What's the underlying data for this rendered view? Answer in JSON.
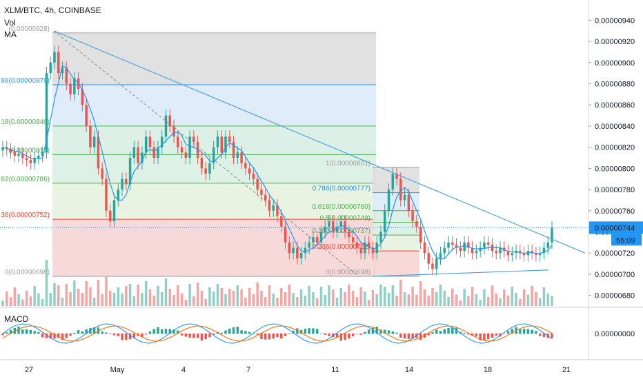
{
  "header": {
    "symbol": "XLM/BTC, 4h, COINBASE",
    "vol_label": "Vol",
    "vol_value": "(0.00000928)",
    "ma_label": "MA",
    "macd_label": "MACD"
  },
  "colors": {
    "up": "#26a69a",
    "down": "#ef5350",
    "vol_up": "#8fcfc6",
    "vol_down": "#f3a5a3",
    "ma": "#2196f3",
    "trend": "#4aa3df",
    "macd_line": "#2196f3",
    "signal_line": "#ff6d00",
    "price_tag_bg": "#2196f3"
  },
  "chart_data": {
    "type": "candlestick",
    "title": "XLM/BTC, 4h, COINBASE",
    "ylim": [
      6.7e-06,
      9.5e-06
    ],
    "price_ticks": [
      "0.00000940",
      "0.00000920",
      "0.00000900",
      "0.00000880",
      "0.00000860",
      "0.00000840",
      "0.00000820",
      "0.00000800",
      "0.00000780",
      "0.00000760",
      "0.00000740",
      "0.00000720",
      "0.00000700",
      "0.00000680"
    ],
    "macd_tick": "0.00000000",
    "time_ticks": [
      "27",
      "May",
      "4",
      "7",
      "11",
      "14",
      "18",
      "21"
    ],
    "last_price": "0.00000744",
    "countdown": "55:09",
    "fib_big": [
      {
        "level": "1",
        "price": 9.28e-06,
        "label": "(0.00000928)",
        "color": "#9e9e9e"
      },
      {
        "level": "0.786",
        "price": 8.79e-06,
        "label": "86(0.00000879)",
        "color": "#2196f3"
      },
      {
        "level": "0.618",
        "price": 8.4e-06,
        "label": "18(0.00000840)",
        "color": "#4caf50"
      },
      {
        "level": "0.5",
        "price": 8.13e-06,
        "label": "(0.00000813)",
        "color": "#4caf50"
      },
      {
        "level": "0.382",
        "price": 7.86e-06,
        "label": "82(0.00000786)",
        "color": "#4caf50"
      },
      {
        "level": "0.236",
        "price": 7.52e-06,
        "label": "36(0.00000752)",
        "color": "#f44336"
      },
      {
        "level": "0",
        "price": 6.98e-06,
        "label": "0(0.00000698)",
        "color": "#9e9e9e"
      }
    ],
    "fib_small": [
      {
        "level": "1",
        "price": 8.01e-06,
        "label": "1(0.00000801)",
        "color": "#9e9e9e"
      },
      {
        "level": "0.786",
        "price": 7.77e-06,
        "label": "0.786(0.00000777)",
        "color": "#2196f3"
      },
      {
        "level": "0.618",
        "price": 7.6e-06,
        "label": "0.618(0.00000760)",
        "color": "#4caf50"
      },
      {
        "level": "0.5",
        "price": 7.49e-06,
        "label": "0.5(0.00000749)",
        "color": "#4caf50"
      },
      {
        "level": "0.382",
        "price": 7.37e-06,
        "label": "0.382(0.00000737)",
        "color": "#4caf50"
      },
      {
        "level": "0.236",
        "price": 7.22e-06,
        "label": "0.236(0.00000722)",
        "color": "#f44336"
      },
      {
        "level": "0",
        "price": 6.98e-06,
        "label": "0(0.00000698)",
        "color": "#9e9e9e"
      }
    ],
    "candles_close": [
      8.2,
      8.18,
      8.15,
      8.12,
      8.14,
      8.1,
      8.08,
      8.05,
      8.1,
      8.12,
      8.15,
      8.9,
      9.0,
      9.1,
      8.9,
      8.95,
      8.8,
      8.7,
      8.85,
      8.75,
      8.6,
      8.4,
      8.2,
      8.3,
      8.0,
      7.9,
      7.6,
      7.5,
      7.7,
      7.8,
      7.9,
      7.85,
      8.1,
      8.2,
      8.05,
      8.15,
      8.3,
      8.2,
      8.1,
      8.2,
      8.3,
      8.5,
      8.4,
      8.3,
      8.2,
      8.15,
      8.1,
      8.3,
      8.25,
      8.1,
      8.0,
      7.95,
      8.05,
      8.2,
      8.3,
      8.15,
      8.3,
      8.25,
      8.1,
      8.15,
      8.05,
      8.0,
      7.95,
      7.9,
      7.8,
      7.75,
      7.7,
      7.6,
      7.65,
      7.55,
      7.45,
      7.3,
      7.2,
      7.25,
      7.15,
      7.2,
      7.25,
      7.3,
      7.35,
      7.3,
      7.4,
      7.45,
      7.5,
      7.4,
      7.45,
      7.5,
      7.4,
      7.35,
      7.3,
      7.25,
      7.2,
      7.3,
      7.25,
      7.2,
      7.3,
      7.4,
      7.6,
      7.8,
      7.95,
      7.9,
      7.7,
      7.75,
      7.6,
      7.5,
      7.45,
      7.3,
      7.2,
      7.1,
      7.05,
      7.15,
      7.2,
      7.25,
      7.3,
      7.28,
      7.25,
      7.22,
      7.3,
      7.25,
      7.2,
      7.22,
      7.25,
      7.3,
      7.28,
      7.22,
      7.2,
      7.25,
      7.22,
      7.18,
      7.2,
      7.22,
      7.2,
      7.18,
      7.22,
      7.2,
      7.18,
      7.2,
      7.25,
      7.3,
      7.44
    ],
    "trendline": {
      "from": [
        9.3e-06,
        "Apr 28"
      ],
      "to": [
        7.2e-06,
        "May 21"
      ]
    },
    "ma_series": "4h MA"
  }
}
